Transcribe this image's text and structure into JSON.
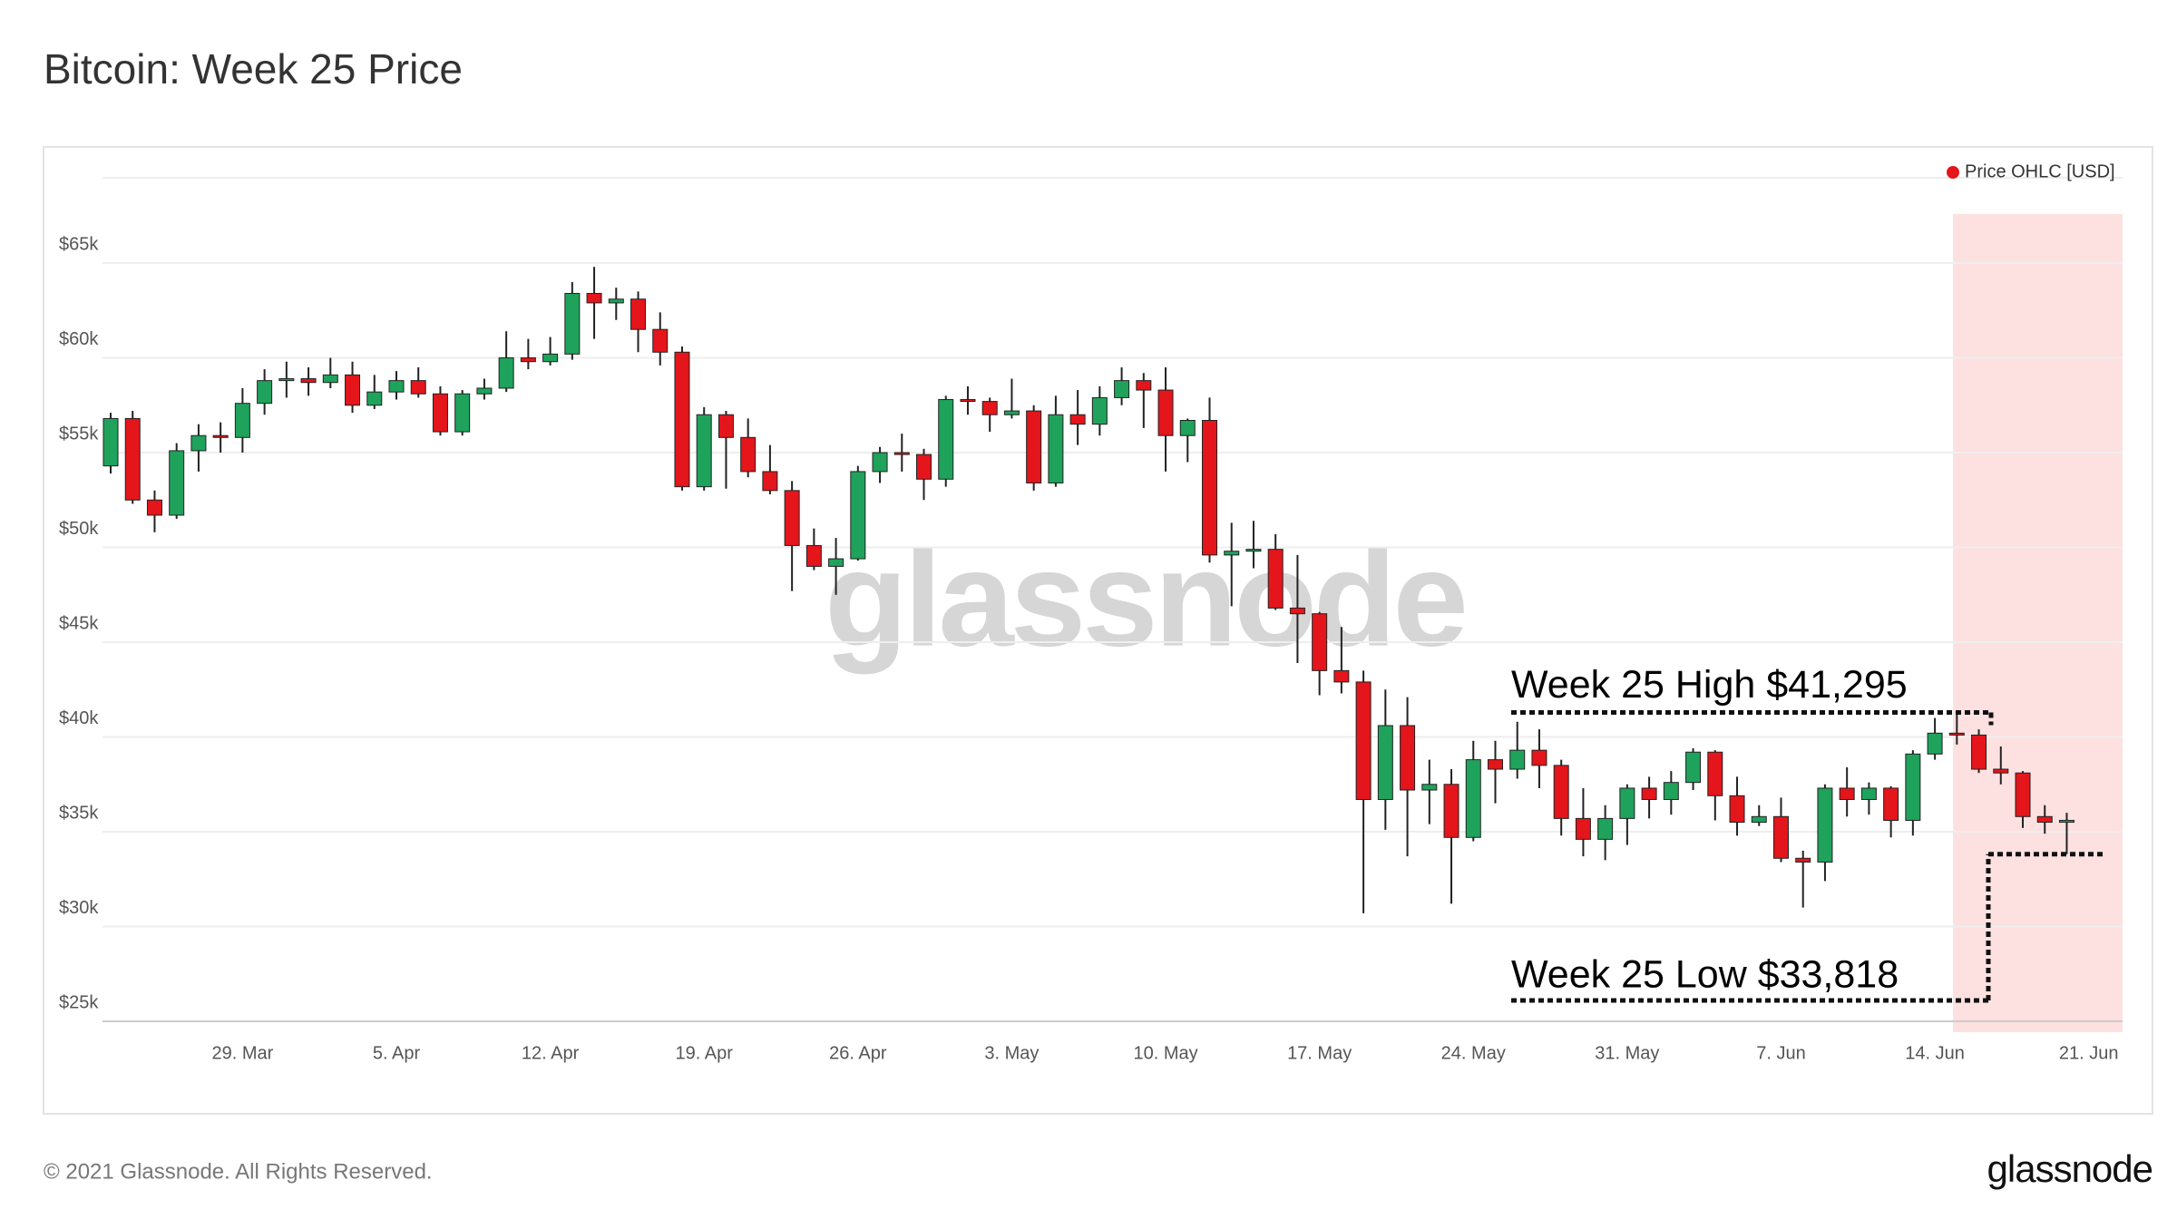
{
  "chart_data": {
    "type": "candlestick",
    "title": "Bitcoin: Week 25 Price",
    "categories": [
      null,
      null,
      null,
      null,
      null,
      null,
      "29. Mar",
      null,
      null,
      null,
      null,
      null,
      null,
      "5. Apr",
      null,
      null,
      null,
      null,
      null,
      null,
      "12. Apr",
      null,
      null,
      null,
      null,
      null,
      null,
      "19. Apr",
      null,
      null,
      null,
      null,
      null,
      null,
      "26. Apr",
      null,
      null,
      null,
      null,
      null,
      null,
      "3. May",
      null,
      null,
      null,
      null,
      null,
      null,
      "10. May",
      null,
      null,
      null,
      null,
      null,
      null,
      "17. May",
      null,
      null,
      null,
      null,
      null,
      null,
      "24. May",
      null,
      null,
      null,
      null,
      null,
      null,
      "31. May",
      null,
      null,
      null,
      null,
      null,
      null,
      "7. Jun",
      null,
      null,
      null,
      null,
      null,
      null,
      "14. Jun",
      null,
      null,
      null,
      null,
      null,
      null,
      "21. Jun"
    ],
    "series": [
      {
        "name": "Price OHLC [USD]",
        "color": "#e4151b",
        "up_color": "#1fa25b",
        "down_color": "#e4151b",
        "open": [
          54300,
          56800,
          52500,
          51700,
          55100,
          55900,
          55800,
          57600,
          58800,
          58900,
          58700,
          59100,
          57500,
          58200,
          58800,
          58100,
          56100,
          58100,
          58400,
          60000,
          59800,
          60200,
          63400,
          62900,
          63100,
          61500,
          60300,
          53200,
          57000,
          55800,
          54000,
          53000,
          50100,
          49000,
          49400,
          54000,
          55000,
          54900,
          53600,
          57800,
          57700,
          57000,
          57200,
          53400,
          57000,
          56500,
          57900,
          58800,
          58300,
          55900,
          56700,
          49600,
          49800,
          49900,
          46800,
          46500,
          43500,
          42900,
          36700,
          40600,
          37200,
          37500,
          34700,
          38800,
          38300,
          39300,
          38500,
          35700,
          34600,
          35700,
          37300,
          36700,
          37600,
          39200,
          36900,
          35500,
          35800,
          33600,
          33400,
          37300,
          36700,
          37300,
          35600,
          39100,
          40200,
          40100,
          38300,
          38100,
          35800,
          35500,
          null
        ],
        "high": [
          57100,
          57200,
          53000,
          55500,
          56500,
          56600,
          58400,
          59400,
          59800,
          59500,
          60000,
          59800,
          59100,
          59300,
          59500,
          58500,
          58300,
          58900,
          61400,
          61000,
          61100,
          64000,
          64800,
          63700,
          63500,
          62400,
          60600,
          57400,
          57200,
          56800,
          55400,
          53500,
          51000,
          50500,
          54300,
          55300,
          56000,
          55200,
          58000,
          58500,
          57900,
          58900,
          57500,
          58000,
          58300,
          58500,
          59500,
          59200,
          59500,
          56800,
          57900,
          51300,
          51400,
          50700,
          49600,
          46600,
          45800,
          43500,
          42500,
          42100,
          38800,
          38300,
          39800,
          39800,
          40800,
          40400,
          38800,
          37300,
          36400,
          37500,
          37900,
          38200,
          39400,
          39300,
          37900,
          36400,
          36800,
          34000,
          37500,
          38400,
          37600,
          37400,
          39300,
          41000,
          41295,
          40400,
          39500,
          38200,
          36400,
          36000,
          null
        ],
        "low": [
          53900,
          52300,
          50800,
          51500,
          54000,
          55000,
          55000,
          57000,
          57900,
          58000,
          58400,
          57100,
          57300,
          57800,
          57900,
          55900,
          55900,
          57800,
          58200,
          59400,
          59600,
          59900,
          61000,
          62000,
          60300,
          59600,
          53000,
          53000,
          53100,
          53700,
          52800,
          47700,
          48800,
          47500,
          49300,
          53400,
          54000,
          52500,
          53200,
          57000,
          56100,
          56800,
          53000,
          53200,
          55400,
          55900,
          57500,
          56300,
          54000,
          54500,
          49200,
          46900,
          48900,
          46700,
          43900,
          42200,
          42300,
          30700,
          35100,
          33700,
          35400,
          31200,
          34500,
          36500,
          37800,
          37300,
          34800,
          33700,
          33500,
          34300,
          35700,
          35900,
          37200,
          35600,
          34800,
          35300,
          33400,
          31000,
          32400,
          35800,
          35900,
          34700,
          34800,
          38800,
          39600,
          38100,
          37500,
          35200,
          34900,
          33818,
          null
        ],
        "close": [
          56800,
          52500,
          51700,
          55100,
          55900,
          55800,
          57600,
          58800,
          58900,
          58700,
          59100,
          57500,
          58200,
          58800,
          58100,
          56100,
          58100,
          58400,
          60000,
          59800,
          60200,
          63400,
          62900,
          63100,
          61500,
          60300,
          53200,
          57000,
          55800,
          54000,
          53000,
          50100,
          49000,
          49400,
          54000,
          55000,
          54900,
          53600,
          57800,
          57700,
          57000,
          57200,
          53400,
          57000,
          56500,
          57900,
          58800,
          58300,
          55900,
          56700,
          49600,
          49800,
          49900,
          46800,
          46500,
          43500,
          42900,
          36700,
          40600,
          37200,
          37500,
          34700,
          38800,
          38300,
          39300,
          38500,
          35700,
          34600,
          35700,
          37300,
          36700,
          37600,
          39200,
          36900,
          35500,
          35800,
          33600,
          33400,
          37300,
          36700,
          37300,
          35600,
          39100,
          40200,
          40100,
          38300,
          38100,
          35800,
          35500,
          35600,
          null
        ]
      }
    ],
    "ylim": [
      25000,
      69500
    ],
    "yticks": [
      {
        "value": 25000,
        "label": "$25k"
      },
      {
        "value": 30000,
        "label": "$30k"
      },
      {
        "value": 35000,
        "label": "$35k"
      },
      {
        "value": 40000,
        "label": "$40k"
      },
      {
        "value": 45000,
        "label": "$45k"
      },
      {
        "value": 50000,
        "label": "$50k"
      },
      {
        "value": 55000,
        "label": "$55k"
      },
      {
        "value": 60000,
        "label": "$60k"
      },
      {
        "value": 65000,
        "label": "$65k"
      }
    ],
    "grid": true,
    "legend": "top-right",
    "highlight": {
      "from": "14. Jun",
      "color": "#fde0e0"
    },
    "annotations": [
      {
        "text": "Week 25 High $41,295",
        "value": 41295
      },
      {
        "text": "Week 25 Low $33,818",
        "value": 33818
      }
    ],
    "watermark": "glassnode"
  },
  "footer": {
    "copyright": "© 2021 Glassnode. All Rights Reserved.",
    "logo": "glassnode"
  }
}
